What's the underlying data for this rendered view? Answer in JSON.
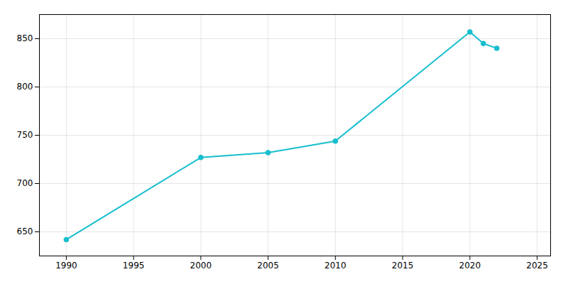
{
  "chart_data": {
    "type": "line",
    "x": [
      1990,
      2000,
      2005,
      2010,
      2020,
      2021,
      2022
    ],
    "values": [
      642,
      727,
      732,
      744,
      857,
      845,
      840
    ],
    "color": "#17becf",
    "marker": "circle",
    "xlim": [
      1988,
      2026
    ],
    "ylim": [
      625,
      875
    ],
    "xticks": [
      1990,
      1995,
      2000,
      2005,
      2010,
      2015,
      2020,
      2025
    ],
    "yticks": [
      650,
      700,
      750,
      800,
      850
    ],
    "grid": true
  }
}
